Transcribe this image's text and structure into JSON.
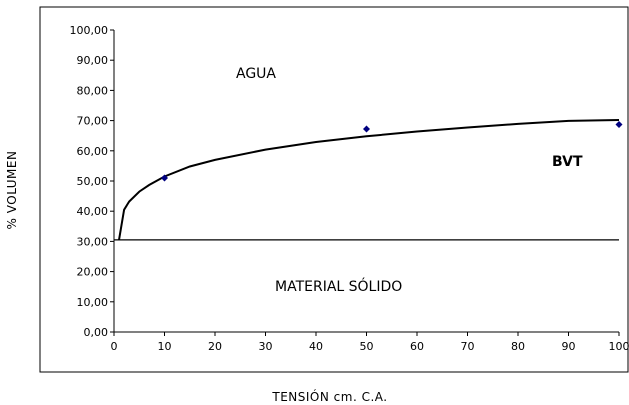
{
  "chart_data": {
    "type": "scatter",
    "xlabel": "TENSIÓN cm. C.A.",
    "ylabel": "% VOLUMEN",
    "xlim": [
      0,
      100
    ],
    "ylim": [
      0,
      100
    ],
    "xticks": [
      0,
      10,
      20,
      30,
      40,
      50,
      60,
      70,
      80,
      90,
      100
    ],
    "yticks": [
      "0,00",
      "10,00",
      "20,00",
      "30,00",
      "40,00",
      "50,00",
      "60,00",
      "70,00",
      "80,00",
      "90,00",
      "100,00"
    ],
    "grid": false,
    "series": [
      {
        "marker": "diamond",
        "color": "#000080",
        "x": [
          10,
          50,
          100
        ],
        "y": [
          51.0,
          67.2,
          68.7
        ]
      },
      {
        "line": "fitted curve",
        "color": "#000000",
        "x": [
          1,
          2,
          3,
          5,
          7,
          10,
          15,
          20,
          30,
          40,
          50,
          60,
          70,
          80,
          90,
          100
        ],
        "y": [
          30.5,
          40.5,
          43.2,
          46.5,
          48.7,
          51.5,
          54.8,
          57.0,
          60.4,
          62.9,
          64.8,
          66.4,
          67.7,
          68.9,
          69.9,
          70.2
        ]
      }
    ],
    "reference_line": {
      "y": 30.5
    },
    "annotations": {
      "agua": "AGUA",
      "bvt": "BVT",
      "material_solido": "MATERIAL SÓLIDO"
    }
  }
}
